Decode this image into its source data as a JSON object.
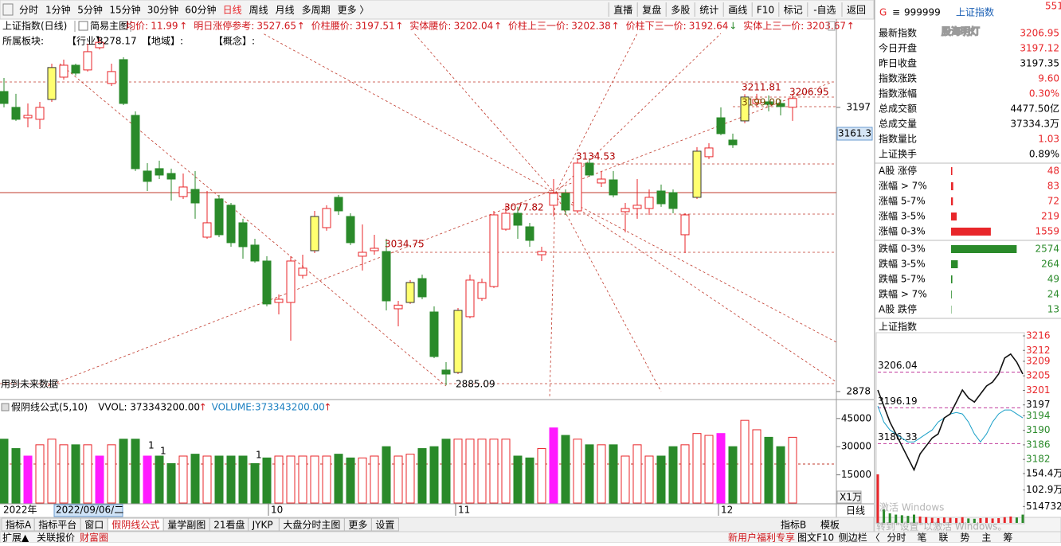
{
  "toolbar": {
    "periods": [
      "分时",
      "1分钟",
      "5分钟",
      "15分钟",
      "30分钟",
      "60分钟",
      "日线",
      "周线",
      "月线",
      "多周期",
      "更多 〉"
    ],
    "active": 6,
    "buttons": [
      "直播",
      "复盘",
      "多股",
      "统计",
      "画线",
      "F10",
      "标记",
      "-自选",
      "返回"
    ]
  },
  "info_bar": {
    "title": "上证指数(日线)",
    "main_chart": "简易主图",
    "items": [
      {
        "label": "均价:",
        "value": "11.99",
        "arrow": "↑"
      },
      {
        "label": "明日涨停参考:",
        "value": "3527.65",
        "arrow": "↑"
      },
      {
        "label": "价柱腰价:",
        "value": "3197.51",
        "arrow": "↑"
      },
      {
        "label": "实体腰价:",
        "value": "3202.04",
        "arrow": "↑"
      },
      {
        "label": "价柱上三一价:",
        "value": "3202.38",
        "arrow": "↑"
      },
      {
        "label": "价柱下三一价:",
        "value": "3192.64",
        "arrow": "↓"
      },
      {
        "label": "实体上三一价:",
        "value": "3203.67",
        "arrow": "↑"
      }
    ]
  },
  "sector_line": {
    "label": "所属板块:",
    "industry": "【行业】",
    "region": "【地域】:",
    "concept": "【概念】:"
  },
  "chart": {
    "type": "candlestick",
    "open": [
      3214.8,
      3197.0,
      3185.3,
      3183.6,
      3205.9,
      3230.9,
      3244.3,
      3239.0,
      3264.0,
      3223.8,
      3250.6,
      3188.0,
      3125.5,
      3128.2,
      3122.8,
      3096.9,
      3104.9,
      3051.3,
      3094.2,
      3087.1,
      3067.4,
      3042.4,
      3024.5,
      2978.0,
      2978.0,
      3008.4,
      3036.1,
      3062.0,
      3096.0,
      3074.5,
      3029.9,
      3036.1,
      3035.2,
      2970.9,
      2978.0,
      3004.8,
      2967.3,
      2902.1,
      2899.4,
      2962.0,
      2982.5,
      2995.9,
      3060.2,
      3078.1,
      3062.9,
      3031.6,
      3087.1,
      3100.5,
      3080.8,
      3134.4,
      3112.1,
      3115.6,
      3079.9,
      3083.5,
      3083.5,
      3103.1,
      3101.3,
      3054.0,
      3096.0,
      3141.6,
      3185.3,
      3160.3,
      3181.8,
      3201.4,
      3203.2,
      3201.4,
      3197.12
    ],
    "high": [
      3230.0,
      3212.2,
      3201.4,
      3203.2,
      3246.1,
      3250.6,
      3246.1,
      3268.5,
      3276.0,
      3246.1,
      3253.3,
      3192.5,
      3134.4,
      3137.1,
      3128.2,
      3122.8,
      3125.5,
      3103.1,
      3098.7,
      3089.7,
      3071.9,
      3049.5,
      3029.9,
      2987.0,
      3029.9,
      3031.6,
      3080.8,
      3087.1,
      3098.7,
      3078.1,
      3065.6,
      3054.0,
      3049.5,
      2979.8,
      3003.1,
      3009.3,
      2973.6,
      2911.0,
      2971.8,
      3009.3,
      3004.8,
      3080.8,
      3087.1,
      3085.3,
      3067.4,
      3040.6,
      3116.5,
      3104.9,
      3138.9,
      3138.9,
      3125.5,
      3125.5,
      3089.7,
      3116.5,
      3104.9,
      3110.3,
      3104.9,
      3078.1,
      3152.3,
      3156.8,
      3197.0,
      3167.5,
      3211.81,
      3212.2,
      3210.4,
      3205.9,
      3212.2
    ],
    "low": [
      3197.0,
      3181.8,
      3174.6,
      3172.8,
      3203.2,
      3228.2,
      3232.7,
      3237.2,
      3262.0,
      3221.0,
      3199.6,
      3125.5,
      3103.1,
      3116.5,
      3092.4,
      3094.2,
      3071.9,
      3049.5,
      3051.3,
      3040.6,
      3027.2,
      3022.7,
      2973.6,
      2964.6,
      2935.1,
      3004.8,
      3033.4,
      3058.5,
      3076.3,
      3042.4,
      3013.8,
      3031.6,
      2969.1,
      2951.2,
      2976.3,
      2981.6,
      2915.5,
      2885.09,
      2897.6,
      2960.2,
      2979.8,
      2994.2,
      3058.5,
      3049.5,
      3040.6,
      3024.5,
      3074.5,
      3076.3,
      3078.1,
      3119.2,
      3107.6,
      3096.0,
      3056.7,
      3071.9,
      3076.3,
      3085.3,
      3078.1,
      3033.4,
      3094.2,
      3138.9,
      3165.7,
      3151.4,
      3179.1,
      3197.0,
      3192.5,
      3188.0,
      3181.8
    ],
    "close": [
      3201.4,
      3183.6,
      3188.0,
      3197.0,
      3241.7,
      3244.3,
      3235.4,
      3259.5,
      3270.0,
      3237.2,
      3201.4,
      3128.2,
      3113.9,
      3121.0,
      3116.5,
      3107.6,
      3089.7,
      3067.4,
      3054.0,
      3045.1,
      3040.6,
      3024.5,
      2976.3,
      2981.6,
      3024.5,
      3016.5,
      3074.5,
      3083.5,
      3080.8,
      3045.1,
      3034.3,
      3038.8,
      2979.8,
      2975.0,
      3000.4,
      2984.3,
      2917.3,
      2897.6,
      2969.1,
      3003.1,
      3000.4,
      3076.3,
      3078.1,
      3064.7,
      3047.7,
      3035.2,
      3100.5,
      3081.7,
      3134.4,
      3121.0,
      3116.5,
      3098.7,
      3083.5,
      3087.1,
      3096.0,
      3088.8,
      3083.5,
      3076.3,
      3147.8,
      3151.4,
      3167.5,
      3155.0,
      3208.6,
      3205.9,
      3200.5,
      3197.9,
      3206.95
    ],
    "up_color": "#e8262a",
    "down_color": "#2a8a2a",
    "highlight": [
      4,
      26,
      34,
      38,
      58,
      62
    ],
    "highlight_color": "#ffff70",
    "ylim": [
      2869,
      3280
    ],
    "yticks": [
      3197,
      2878
    ],
    "annotations": [
      "3211.81",
      "3206.95",
      "3199.00",
      "3134.53",
      "3077.82",
      "3034.75",
      "2885.09",
      "3278.17"
    ],
    "cursor_value": "3161.3",
    "note": "用到未来数据",
    "volume": {
      "values": [
        34000,
        29000,
        25000,
        31000,
        34000,
        31000,
        31000,
        31000,
        25000,
        31000,
        34000,
        34000,
        25000,
        25000,
        21000,
        25000,
        26000,
        25000,
        25000,
        25000,
        25000,
        21000,
        24000,
        25000,
        25000,
        25000,
        25000,
        25000,
        26000,
        24000,
        24000,
        25000,
        30000,
        25000,
        26000,
        29000,
        30000,
        34000,
        34000,
        34000,
        34000,
        34000,
        34000,
        25000,
        24000,
        29000,
        40000,
        36000,
        34000,
        31000,
        31000,
        31000,
        25000,
        31000,
        25000,
        25000,
        30000,
        31000,
        37000,
        36000,
        37000,
        30000,
        44000,
        39000,
        35000,
        30000,
        35000
      ],
      "highlight": [
        2,
        8,
        12,
        46,
        60
      ],
      "highlight_color": "#ff1aff",
      "ylim": [
        0,
        50000
      ],
      "yticks": [
        45000,
        30000,
        15000
      ],
      "notes": [
        "1",
        "1",
        "1"
      ],
      "unit": "X1万"
    },
    "dates": {
      "year": "2022年",
      "cursor_date": "2022/09/06/二",
      "months": [
        "10",
        "11",
        "12"
      ],
      "period": "日线"
    }
  },
  "volume_info": {
    "formula": "假阴线公式(5,10)",
    "vvol_label": "VVOL:",
    "vvol": "373343200.00",
    "vvol_arrow": "↑",
    "volume_label": "VOLUME:",
    "volume": "373343200.00",
    "volume_arrow": "↑"
  },
  "tabs": {
    "items": [
      "指标A",
      "指标平台",
      "窗口",
      "假阴线公式",
      "量学副图",
      "21看盘",
      "JYKP",
      "大盘分时主图",
      "更多",
      "设置"
    ],
    "active": 3,
    "right": [
      "指标B",
      "模板"
    ]
  },
  "status_bar": {
    "left": [
      "扩展▲",
      "关联报价",
      "财富圈"
    ],
    "right": [
      "新用户福利专享",
      "图文F10",
      "侧边栏 〈",
      "分时",
      "笔",
      "联",
      "势",
      "主",
      "筹"
    ]
  },
  "windows_watermark": [
    "激活 Windows",
    "转到\"设置\"以激活 Windows。"
  ],
  "side_panel": {
    "header": {
      "badge": "G",
      "menu": "≡",
      "code": "999999",
      "name": "上证指数",
      "corner": "551"
    },
    "watermark": "股海明灯",
    "quote": [
      {
        "label": "最新指数",
        "value": "3206.95",
        "color": "#e8262a"
      },
      {
        "label": "今日开盘",
        "value": "3197.12",
        "color": "#e8262a"
      },
      {
        "label": "昨日收盘",
        "value": "3197.35",
        "color": "#000000"
      },
      {
        "label": "指数涨跌",
        "value": "9.60",
        "color": "#e8262a"
      },
      {
        "label": "指数涨幅",
        "value": "0.30%",
        "color": "#e8262a"
      },
      {
        "label": "总成交额",
        "value": "4477.50亿",
        "color": "#000000"
      },
      {
        "label": "总成交量",
        "value": "37334.3万",
        "color": "#000000"
      },
      {
        "label": "指数量比",
        "value": "1.03",
        "color": "#e8262a"
      },
      {
        "label": "上证换手",
        "value": "0.89%",
        "color": "#000000"
      }
    ],
    "breadth": [
      {
        "label": "A股 涨停",
        "value": 48,
        "color": "#e8262a"
      },
      {
        "label": "涨幅 > 7%",
        "value": 83,
        "color": "#e8262a"
      },
      {
        "label": "涨幅 5-7%",
        "value": 72,
        "color": "#e8262a"
      },
      {
        "label": "涨幅 3-5%",
        "value": 219,
        "color": "#e8262a"
      },
      {
        "label": "涨幅 0-3%",
        "value": 1559,
        "color": "#e8262a"
      },
      {
        "label": "跌幅 0-3%",
        "value": 2574,
        "color": "#2a8a2a"
      },
      {
        "label": "跌幅 3-5%",
        "value": 264,
        "color": "#2a8a2a"
      },
      {
        "label": "跌幅 5-7%",
        "value": 49,
        "color": "#2a8a2a"
      },
      {
        "label": "跌幅 > 7%",
        "value": 24,
        "color": "#2a8a2a"
      },
      {
        "label": "A股 跌停",
        "value": 13,
        "color": "#2a8a2a"
      }
    ],
    "mini_chart": {
      "title": "上证指数",
      "type": "line",
      "prev_close": 3197.35,
      "ylim": [
        3177,
        3216
      ],
      "yticks": [
        3216,
        3212,
        3209,
        3205,
        3201,
        3197,
        3194,
        3190,
        3186,
        3182
      ],
      "levels": [
        3206.04,
        3196.19,
        3186.33
      ],
      "price": [
        3201.1,
        3196.7,
        3192.3,
        3189.0,
        3185.7,
        3182.4,
        3179.1,
        3183.5,
        3185.7,
        3187.9,
        3189.0,
        3193.4,
        3194.5,
        3197.8,
        3201.1,
        3198.9,
        3197.8,
        3200.0,
        3202.2,
        3203.3,
        3205.5,
        3209.9,
        3211.0,
        3208.8,
        3205.5
      ],
      "avg": [
        3196.7,
        3192.3,
        3190.1,
        3189.0,
        3187.9,
        3186.8,
        3186.8,
        3187.9,
        3189.0,
        3190.1,
        3192.3,
        3193.4,
        3194.5,
        3194.9,
        3194.5,
        3192.3,
        3189.0,
        3186.8,
        3189.0,
        3192.3,
        3194.5,
        3195.6,
        3195.6,
        3194.5,
        3193.4
      ],
      "price_color": "#111111",
      "avg_color": "#1aa0c8",
      "volume": [
        1520000,
        420000,
        300000,
        260000,
        240000,
        220000,
        260000,
        200000,
        180000,
        160000,
        150000,
        170000,
        160000,
        150000,
        180000,
        140000,
        130000,
        150000,
        160000,
        140000,
        150000,
        180000,
        200000,
        170000,
        260000
      ],
      "vlim": [
        0,
        1544000
      ],
      "vticks": [
        {
          "value": 1544000,
          "label": "154.4万"
        },
        {
          "value": 1029000,
          "label": "102.9万"
        },
        514732
      ]
    }
  }
}
